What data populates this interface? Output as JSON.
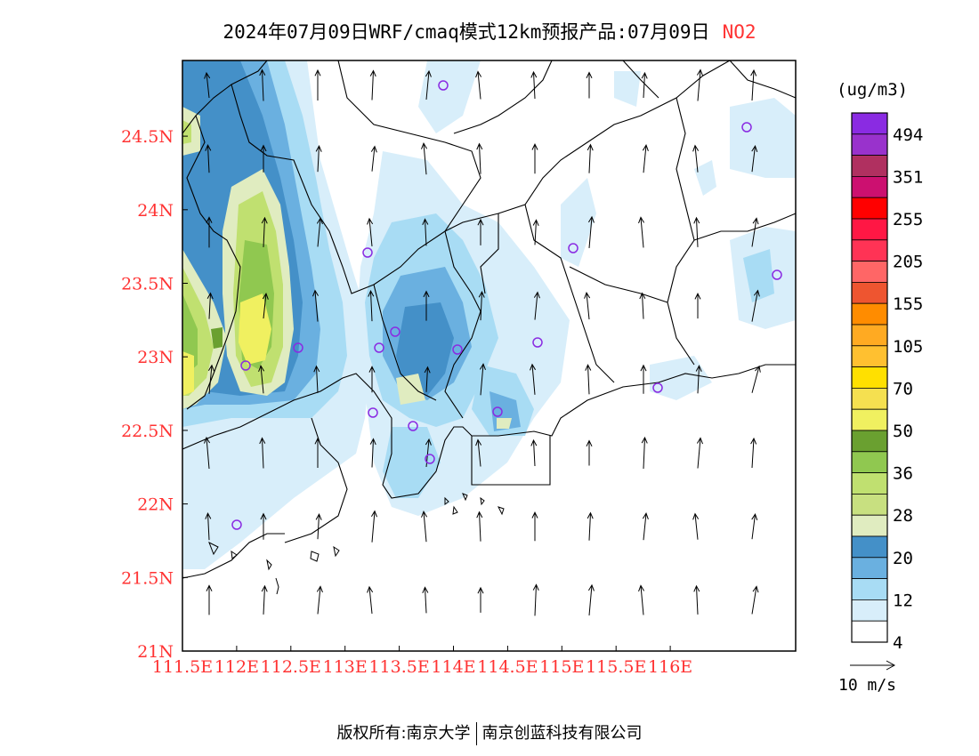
{
  "title": {
    "main": "2024年07月09日WRF/cmaq模式12km预报产品:07月09日",
    "pollutant": "NO2"
  },
  "axes": {
    "lat_ticks": [
      "21N",
      "21.5N",
      "22N",
      "22.5N",
      "23N",
      "23.5N",
      "24N",
      "24.5N"
    ],
    "lon_ticks": [
      "111.5E",
      "112E",
      "112.5E",
      "113E",
      "113.5E",
      "114E",
      "114.5E",
      "115E",
      "115.5E",
      "116E"
    ]
  },
  "legend": {
    "unit": "(ug/m3)",
    "labels": [
      "494",
      "351",
      "255",
      "205",
      "155",
      "105",
      "70",
      "50",
      "36",
      "28",
      "20",
      "12",
      "4"
    ],
    "colors": [
      "#8a2be2",
      "#9932cc",
      "#b03060",
      "#cc1070",
      "#ff0000",
      "#ff1744",
      "#ff3355",
      "#ff6666",
      "#ee5530",
      "#ff8c00",
      "#ffaa22",
      "#ffc030",
      "#ffe000",
      "#f5e050",
      "#f0f060",
      "#6aa030",
      "#90c850",
      "#c0e070",
      "#c8e080",
      "#e0ecc0",
      "#4490c8",
      "#6ab0e0",
      "#a8dcf4",
      "#d8eefa",
      "#ffffff"
    ],
    "wind_scale": "10 m/s"
  },
  "footer": {
    "left": "版权所有:南京大学",
    "right": "南京创蓝科技有限公司"
  },
  "colors": {
    "axis_label": "#ff3333",
    "station": "#8a2be2"
  }
}
